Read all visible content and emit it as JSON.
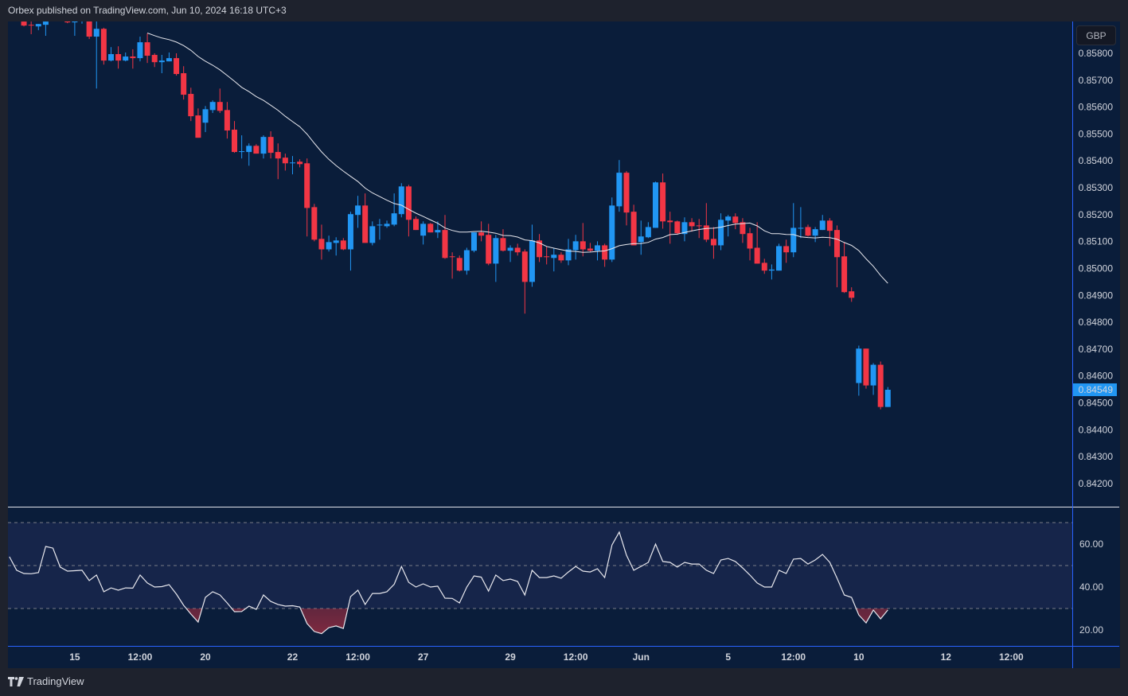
{
  "header": {
    "title": "Orbex published on TradingView.com, Jun 10, 2024 16:18 UTC+3"
  },
  "currency_button": "GBP",
  "footer": {
    "brand": "TradingView"
  },
  "colors": {
    "up": "#2196f3",
    "down": "#f23645",
    "background": "#0a1d3a",
    "page": "#1e222d",
    "ma": "#e8e8ee",
    "rsi_band": "#16254a",
    "axis_line": "#2962ff",
    "last_price_bg": "#2196f3"
  },
  "chart_data": [
    {
      "type": "candlestick",
      "title": "GBP price",
      "ylim": [
        0.8418,
        0.8598
      ],
      "y_ticks": [
        "0.85800",
        "0.85700",
        "0.85600",
        "0.85500",
        "0.85400",
        "0.85300",
        "0.85200",
        "0.85100",
        "0.85000",
        "0.84900",
        "0.84800",
        "0.84700",
        "0.84600",
        "0.84500",
        "0.84400",
        "0.84300",
        "0.84200"
      ],
      "last_price": "0.84549",
      "moving_average_period": 20,
      "x_ticks": [
        {
          "label": "15",
          "at": 9
        },
        {
          "label": "12:00",
          "at": 18
        },
        {
          "label": "20",
          "at": 27
        },
        {
          "label": "22",
          "at": 39
        },
        {
          "label": "12:00",
          "at": 48
        },
        {
          "label": "27",
          "at": 57
        },
        {
          "label": "29",
          "at": 69
        },
        {
          "label": "12:00",
          "at": 78
        },
        {
          "label": "Jun",
          "at": 87
        },
        {
          "label": "5",
          "at": 99
        },
        {
          "label": "12:00",
          "at": 108
        },
        {
          "label": "10",
          "at": 117
        },
        {
          "label": "12",
          "at": 129
        },
        {
          "label": "12:00",
          "at": 138
        }
      ],
      "ohlc": [
        [
          0.8595,
          0.8597,
          0.8593,
          0.8596
        ],
        [
          0.8596,
          0.8598,
          0.8594,
          0.8595
        ],
        [
          0.85918,
          0.85924,
          0.859,
          0.85903
        ],
        [
          0.85906,
          0.85918,
          0.85871,
          0.85905
        ],
        [
          0.859,
          0.85909,
          0.85886,
          0.85909
        ],
        [
          0.85906,
          0.85935,
          0.85865,
          0.85918
        ],
        [
          0.8593,
          0.8596,
          0.8592,
          0.8594
        ],
        [
          0.8594,
          0.8597,
          0.8592,
          0.8595
        ],
        [
          0.8595,
          0.8597,
          0.85912,
          0.85915
        ],
        [
          0.85915,
          0.8594,
          0.85865,
          0.8593
        ],
        [
          0.8592,
          0.8594,
          0.8591,
          0.8593
        ],
        [
          0.8594,
          0.8596,
          0.85853,
          0.85862
        ],
        [
          0.85862,
          0.8594,
          0.85669,
          0.85891
        ],
        [
          0.85891,
          0.85895,
          0.85758,
          0.85773
        ],
        [
          0.85773,
          0.85823,
          0.8577,
          0.85797
        ],
        [
          0.85797,
          0.85826,
          0.85743,
          0.85773
        ],
        [
          0.85773,
          0.85803,
          0.8577,
          0.85788
        ],
        [
          0.85788,
          0.85815,
          0.85743,
          0.85782
        ],
        [
          0.85782,
          0.85862,
          0.8577,
          0.85841
        ],
        [
          0.85841,
          0.85874,
          0.85764,
          0.85791
        ],
        [
          0.85794,
          0.858,
          0.85749,
          0.85767
        ],
        [
          0.85767,
          0.85794,
          0.85726,
          0.85773
        ],
        [
          0.8577,
          0.85803,
          0.8577,
          0.85782
        ],
        [
          0.85782,
          0.858,
          0.85717,
          0.85723
        ],
        [
          0.85726,
          0.85752,
          0.85628,
          0.85646
        ],
        [
          0.85649,
          0.85672,
          0.85548,
          0.85566
        ],
        [
          0.85569,
          0.85595,
          0.85486,
          0.85486
        ],
        [
          0.85542,
          0.85604,
          0.85507,
          0.85592
        ],
        [
          0.85589,
          0.85625,
          0.85578,
          0.85619
        ],
        [
          0.85619,
          0.85669,
          0.85578,
          0.85586
        ],
        [
          0.85589,
          0.85619,
          0.85483,
          0.85513
        ],
        [
          0.85516,
          0.85548,
          0.8543,
          0.85433
        ],
        [
          0.85433,
          0.85495,
          0.85409,
          0.85436
        ],
        [
          0.85433,
          0.85465,
          0.85382,
          0.85456
        ],
        [
          0.85456,
          0.85462,
          0.85427,
          0.85427
        ],
        [
          0.85427,
          0.85495,
          0.85409,
          0.85489
        ],
        [
          0.85489,
          0.8551,
          0.85409,
          0.8543
        ],
        [
          0.85433,
          0.85465,
          0.85332,
          0.85409
        ],
        [
          0.85412,
          0.85427,
          0.85364,
          0.85391
        ],
        [
          0.85391,
          0.85418,
          0.8535,
          0.85394
        ],
        [
          0.85397,
          0.85406,
          0.85376,
          0.85388
        ],
        [
          0.85391,
          0.85409,
          0.85119,
          0.85225
        ],
        [
          0.85228,
          0.8524,
          0.85101,
          0.85107
        ],
        [
          0.8511,
          0.85163,
          0.85033,
          0.85071
        ],
        [
          0.85071,
          0.85122,
          0.85063,
          0.85098
        ],
        [
          0.85095,
          0.85116,
          0.85048,
          0.85104
        ],
        [
          0.85104,
          0.85113,
          0.85068,
          0.85071
        ],
        [
          0.85071,
          0.85211,
          0.84992,
          0.85202
        ],
        [
          0.85199,
          0.8527,
          0.85151,
          0.85234
        ],
        [
          0.85234,
          0.85279,
          0.85095,
          0.85095
        ],
        [
          0.85095,
          0.85175,
          0.85086,
          0.85157
        ],
        [
          0.8516,
          0.85184,
          0.85107,
          0.85163
        ],
        [
          0.85157,
          0.85178,
          0.85151,
          0.85166
        ],
        [
          0.85163,
          0.85279,
          0.85157,
          0.85205
        ],
        [
          0.85202,
          0.85317,
          0.8519,
          0.85305
        ],
        [
          0.85305,
          0.85311,
          0.85119,
          0.85181
        ],
        [
          0.85184,
          0.85193,
          0.85143,
          0.85143
        ],
        [
          0.85122,
          0.85175,
          0.85089,
          0.85166
        ],
        [
          0.85166,
          0.85169,
          0.85134,
          0.85134
        ],
        [
          0.85134,
          0.85175,
          0.85113,
          0.85143
        ],
        [
          0.85143,
          0.85199,
          0.85036,
          0.85039
        ],
        [
          0.85045,
          0.8506,
          0.84962,
          0.85042
        ],
        [
          0.85039,
          0.85048,
          0.84989,
          0.84992
        ],
        [
          0.84992,
          0.85077,
          0.84977,
          0.85068
        ],
        [
          0.85066,
          0.85134,
          0.8506,
          0.85134
        ],
        [
          0.85134,
          0.85175,
          0.85101,
          0.85122
        ],
        [
          0.85125,
          0.85166,
          0.85012,
          0.85018
        ],
        [
          0.85018,
          0.85125,
          0.8495,
          0.85113
        ],
        [
          0.85113,
          0.85146,
          0.85063,
          0.85066
        ],
        [
          0.85066,
          0.85086,
          0.85024,
          0.85077
        ],
        [
          0.85077,
          0.85092,
          0.85048,
          0.8506
        ],
        [
          0.85063,
          0.85071,
          0.84832,
          0.8495
        ],
        [
          0.8495,
          0.85163,
          0.84932,
          0.85104
        ],
        [
          0.85104,
          0.85128,
          0.85024,
          0.85042
        ],
        [
          0.85045,
          0.85083,
          0.85015,
          0.85042
        ],
        [
          0.85039,
          0.85074,
          0.84989,
          0.85051
        ],
        [
          0.85051,
          0.8506,
          0.85021,
          0.8503
        ],
        [
          0.8503,
          0.8511,
          0.85012,
          0.85071
        ],
        [
          0.85068,
          0.85125,
          0.85033,
          0.85101
        ],
        [
          0.85101,
          0.85169,
          0.85045,
          0.85071
        ],
        [
          0.85074,
          0.85095,
          0.8506,
          0.85066
        ],
        [
          0.85066,
          0.85101,
          0.8503,
          0.85086
        ],
        [
          0.85086,
          0.85092,
          0.85006,
          0.85033
        ],
        [
          0.85033,
          0.85264,
          0.85024,
          0.85234
        ],
        [
          0.85231,
          0.85403,
          0.85211,
          0.85356
        ],
        [
          0.85356,
          0.85362,
          0.8516,
          0.85208
        ],
        [
          0.85211,
          0.85237,
          0.85086,
          0.85086
        ],
        [
          0.85098,
          0.85178,
          0.85051,
          0.85119
        ],
        [
          0.85116,
          0.85172,
          0.85113,
          0.85154
        ],
        [
          0.85151,
          0.85323,
          0.85151,
          0.8532
        ],
        [
          0.8532,
          0.85353,
          0.85148,
          0.85175
        ],
        [
          0.85178,
          0.85211,
          0.85092,
          0.85172
        ],
        [
          0.85175,
          0.85178,
          0.85125,
          0.85131
        ],
        [
          0.85128,
          0.8519,
          0.85101,
          0.85172
        ],
        [
          0.85172,
          0.85187,
          0.85137,
          0.85157
        ],
        [
          0.8516,
          0.85184,
          0.85113,
          0.85157
        ],
        [
          0.8516,
          0.85243,
          0.85098,
          0.85107
        ],
        [
          0.8511,
          0.85154,
          0.85036,
          0.85086
        ],
        [
          0.85086,
          0.85205,
          0.85068,
          0.85181
        ],
        [
          0.85178,
          0.85199,
          0.85119,
          0.85193
        ],
        [
          0.85193,
          0.85205,
          0.85146,
          0.85169
        ],
        [
          0.85172,
          0.85187,
          0.85095,
          0.85128
        ],
        [
          0.85131,
          0.85151,
          0.8503,
          0.85074
        ],
        [
          0.85077,
          0.85172,
          0.85018,
          0.85018
        ],
        [
          0.85021,
          0.85036,
          0.8498,
          0.84992
        ],
        [
          0.84992,
          0.85015,
          0.84959,
          0.84996
        ],
        [
          0.84992,
          0.85092,
          0.84992,
          0.85083
        ],
        [
          0.85083,
          0.85107,
          0.85021,
          0.8506
        ],
        [
          0.8506,
          0.85243,
          0.85042,
          0.85151
        ],
        [
          0.85148,
          0.85228,
          0.85113,
          0.85151
        ],
        [
          0.85154,
          0.85163,
          0.85119,
          0.85122
        ],
        [
          0.85122,
          0.85154,
          0.85098,
          0.85146
        ],
        [
          0.85143,
          0.85199,
          0.85143,
          0.85178
        ],
        [
          0.85178,
          0.85187,
          0.85083,
          0.8514
        ],
        [
          0.85143,
          0.8516,
          0.8493,
          0.85042
        ],
        [
          0.85045,
          0.85098,
          0.84909,
          0.84912
        ],
        [
          0.84915,
          0.8493,
          0.84876,
          0.84891
        ],
        [
          0.84574,
          0.84713,
          0.84527,
          0.84702
        ],
        [
          0.84702,
          0.84702,
          0.84553,
          0.84565
        ],
        [
          0.84565,
          0.84648,
          0.8453,
          0.84642
        ],
        [
          0.84642,
          0.84654,
          0.84476,
          0.84485
        ],
        [
          0.84485,
          0.84559,
          0.84485,
          0.84549
        ]
      ]
    },
    {
      "type": "line",
      "title": "RSI",
      "ylim": [
        13.5,
        77
      ],
      "y_ticks": [
        "60.00",
        "40.00",
        "20.00"
      ],
      "bands": [
        70,
        50,
        30
      ],
      "values": [
        54.1,
        47.8,
        46.3,
        46.2,
        46.7,
        58.9,
        58.1,
        49.3,
        47.4,
        47.6,
        47.8,
        43.0,
        45.6,
        37.8,
        39.6,
        38.5,
        39.6,
        39.5,
        45.6,
        41.9,
        40.0,
        40.2,
        41.1,
        36.7,
        31.5,
        27.4,
        23.7,
        35.2,
        37.8,
        36.3,
        32.6,
        28.5,
        28.6,
        31.1,
        29.6,
        36.3,
        33.3,
        31.9,
        31.1,
        31.3,
        30.7,
        23.0,
        19.3,
        18.3,
        21.1,
        21.9,
        20.7,
        35.5,
        38.5,
        31.9,
        37.0,
        37.0,
        37.8,
        41.3,
        49.6,
        42.2,
        40.0,
        41.5,
        40.0,
        40.4,
        34.8,
        34.7,
        32.6,
        40.0,
        45.2,
        44.6,
        38.1,
        45.6,
        43.0,
        43.7,
        42.6,
        36.3,
        47.8,
        44.4,
        44.4,
        45.2,
        44.1,
        47.0,
        49.6,
        47.4,
        47.0,
        48.5,
        44.4,
        59.6,
        65.6,
        54.8,
        47.8,
        49.6,
        51.5,
        60.0,
        51.9,
        51.5,
        49.3,
        51.5,
        50.7,
        50.7,
        47.8,
        46.3,
        52.6,
        53.3,
        51.9,
        48.9,
        45.6,
        41.9,
        40.0,
        40.0,
        47.8,
        46.3,
        53.0,
        53.3,
        50.7,
        52.6,
        55.2,
        51.5,
        44.1,
        36.3,
        35.2,
        27.0,
        23.3,
        29.3,
        25.2,
        29.3
      ]
    }
  ]
}
